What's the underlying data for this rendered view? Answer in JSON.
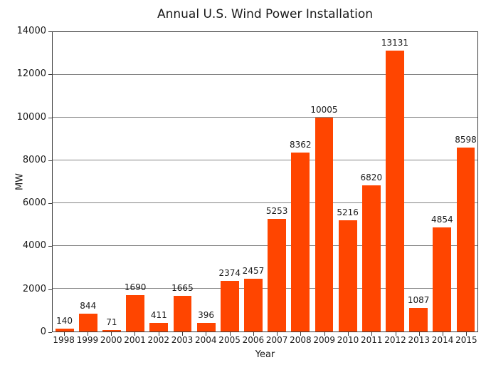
{
  "chart_data": {
    "type": "bar",
    "title": "Annual U.S. Wind Power Installation",
    "xlabel": "Year",
    "ylabel": "MW",
    "categories": [
      "1998",
      "1999",
      "2000",
      "2001",
      "2002",
      "2003",
      "2004",
      "2005",
      "2006",
      "2007",
      "2008",
      "2009",
      "2010",
      "2011",
      "2012",
      "2013",
      "2014",
      "2015"
    ],
    "values": [
      140,
      844,
      71,
      1690,
      411,
      1665,
      396,
      2374,
      2457,
      5253,
      8362,
      10005,
      5216,
      6820,
      13131,
      1087,
      4854,
      8598
    ],
    "ylim": [
      0,
      14000
    ],
    "yticks": [
      0,
      2000,
      4000,
      6000,
      8000,
      10000,
      12000,
      14000
    ],
    "bar_color": "#FF4500",
    "gridline_color": "#858585",
    "grid": true,
    "legend": null
  }
}
